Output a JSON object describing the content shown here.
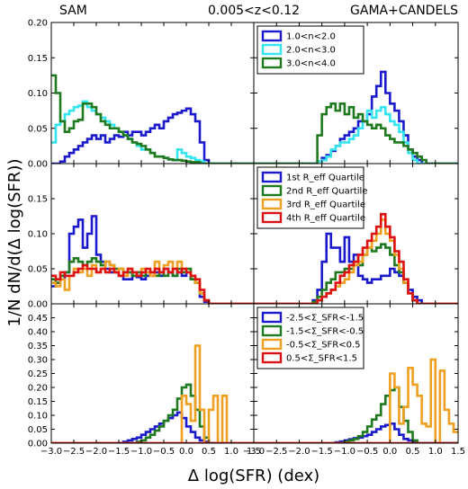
{
  "header": {
    "left": "SAM",
    "center": "0.005<z<0.12",
    "right": "GAMA+CANDELS"
  },
  "chart_data": {
    "type": "histogram-grid",
    "xlabel": "Δ log(SFR) (dex)",
    "ylabel": "1/N dN/d(Δ log(SFR))",
    "x_ticks": [
      "−3.0",
      "−2.5",
      "−2.0",
      "−1.5",
      "−1.0",
      "−0.5",
      "0.0",
      "0.5",
      "1.0",
      "1.5"
    ],
    "x_tick_values": [
      -3.0,
      -2.5,
      -2.0,
      -1.5,
      -1.0,
      -0.5,
      0.0,
      0.5,
      1.0,
      1.5
    ],
    "xlim": [
      -3.0,
      1.5
    ],
    "rows": [
      {
        "ylim": [
          0,
          0.2
        ],
        "y_ticks": [
          "0.00",
          "0.05",
          "0.10",
          "0.15",
          "0.20"
        ],
        "y_tick_values": [
          0,
          0.05,
          0.1,
          0.15,
          0.2
        ],
        "legend": [
          "1.0<n<2.0",
          "2.0<n<3.0",
          "3.0<n<4.0"
        ],
        "colors": [
          "#1a1acc",
          "#33e5f0",
          "#1f7a1f"
        ],
        "x0": -3.0,
        "bin": 0.1,
        "sam": [
          [
            0,
            0,
            0.003,
            0.01,
            0.015,
            0.02,
            0.025,
            0.03,
            0.035,
            0.04,
            0.035,
            0.04,
            0.03,
            0.035,
            0.04,
            0.038,
            0.045,
            0.04,
            0.045,
            0.045,
            0.04,
            0.045,
            0.05,
            0.055,
            0.05,
            0.06,
            0.065,
            0.07,
            0.072,
            0.075,
            0.078,
            0.07,
            0.06,
            0.03,
            0.005,
            0,
            0,
            0,
            0,
            0,
            0,
            0,
            0,
            0,
            0
          ],
          [
            0.03,
            0.055,
            0.06,
            0.07,
            0.075,
            0.08,
            0.082,
            0.088,
            0.08,
            0.075,
            0.07,
            0.065,
            0.06,
            0.055,
            0.05,
            0.045,
            0.04,
            0.035,
            0.03,
            0.025,
            0.02,
            0.02,
            0.015,
            0.01,
            0.01,
            0.008,
            0.006,
            0.005,
            0.02,
            0.015,
            0.01,
            0.008,
            0.005,
            0.003,
            0,
            0,
            0,
            0,
            0,
            0,
            0,
            0,
            0,
            0,
            0
          ],
          [
            0.125,
            0.1,
            0.06,
            0.045,
            0.05,
            0.06,
            0.062,
            0.085,
            0.085,
            0.08,
            0.07,
            0.06,
            0.055,
            0.05,
            0.05,
            0.045,
            0.04,
            0.035,
            0.03,
            0.028,
            0.025,
            0.02,
            0.015,
            0.01,
            0.01,
            0.008,
            0.006,
            0.005,
            0.005,
            0.004,
            0.003,
            0.002,
            0.002,
            0,
            0,
            0,
            0,
            0,
            0,
            0,
            0,
            0,
            0,
            0,
            0
          ]
        ],
        "obs": [
          [
            0,
            0,
            0,
            0,
            0,
            0,
            0,
            0,
            0,
            0,
            0,
            0,
            0,
            0,
            0.003,
            0.008,
            0.012,
            0.018,
            0.025,
            0.035,
            0.04,
            0.045,
            0.05,
            0.06,
            0.06,
            0.07,
            0.095,
            0.11,
            0.13,
            0.1,
            0.085,
            0.075,
            0.06,
            0.04,
            0.02,
            0.01,
            0.005,
            0,
            0,
            0,
            0,
            0,
            0,
            0,
            0
          ],
          [
            0,
            0,
            0,
            0,
            0,
            0,
            0,
            0,
            0,
            0,
            0,
            0,
            0,
            0,
            0.003,
            0.005,
            0.01,
            0.02,
            0.025,
            0.03,
            0.03,
            0.035,
            0.04,
            0.05,
            0.06,
            0.075,
            0.065,
            0.075,
            0.08,
            0.07,
            0.06,
            0.055,
            0.045,
            0.03,
            0.015,
            0.005,
            0,
            0,
            0,
            0,
            0,
            0,
            0,
            0,
            0
          ],
          [
            0,
            0,
            0,
            0,
            0,
            0,
            0,
            0,
            0,
            0,
            0,
            0,
            0,
            0,
            0.04,
            0.07,
            0.08,
            0.085,
            0.075,
            0.085,
            0.07,
            0.08,
            0.065,
            0.07,
            0.06,
            0.055,
            0.05,
            0.055,
            0.05,
            0.04,
            0.035,
            0.03,
            0.03,
            0.025,
            0.02,
            0.015,
            0.01,
            0.005,
            0,
            0,
            0,
            0,
            0,
            0,
            0
          ]
        ]
      },
      {
        "ylim": [
          0,
          0.2
        ],
        "y_ticks": [
          "0.00",
          "0.05",
          "0.10",
          "0.15",
          "0.20"
        ],
        "y_tick_values": [
          0,
          0.05,
          0.1,
          0.15,
          0.2
        ],
        "legend": [
          "1st R_eff Quartile",
          "2nd R_eff Quartile",
          "3rd R_eff Quartile",
          "4th R_eff Quartile"
        ],
        "colors": [
          "#1a1acc",
          "#1f7a1f",
          "#f0a020",
          "#dd1111"
        ],
        "x0": -3.0,
        "bin": 0.1,
        "sam": [
          [
            0.025,
            0.03,
            0.035,
            0.045,
            0.1,
            0.11,
            0.12,
            0.08,
            0.1,
            0.125,
            0.07,
            0.06,
            0.05,
            0.045,
            0.045,
            0.04,
            0.035,
            0.035,
            0.04,
            0.038,
            0.035,
            0.04,
            0.04,
            0.045,
            0.04,
            0.05,
            0.045,
            0.04,
            0.045,
            0.04,
            0.045,
            0.035,
            0.03,
            0.01,
            0.003,
            0,
            0,
            0,
            0,
            0,
            0,
            0,
            0,
            0,
            0
          ],
          [
            0.035,
            0.03,
            0.04,
            0.045,
            0.06,
            0.065,
            0.06,
            0.055,
            0.06,
            0.065,
            0.06,
            0.055,
            0.06,
            0.055,
            0.05,
            0.05,
            0.045,
            0.045,
            0.04,
            0.045,
            0.04,
            0.045,
            0.045,
            0.04,
            0.045,
            0.04,
            0.045,
            0.04,
            0.05,
            0.045,
            0.05,
            0.035,
            0.03,
            0.015,
            0.005,
            0,
            0,
            0,
            0,
            0,
            0,
            0,
            0,
            0,
            0
          ],
          [
            0.03,
            0.025,
            0.035,
            0.02,
            0.04,
            0.05,
            0.045,
            0.05,
            0.04,
            0.055,
            0.045,
            0.05,
            0.06,
            0.055,
            0.045,
            0.05,
            0.04,
            0.05,
            0.045,
            0.04,
            0.05,
            0.045,
            0.04,
            0.06,
            0.045,
            0.055,
            0.06,
            0.05,
            0.06,
            0.05,
            0.045,
            0.04,
            0.03,
            0.015,
            0.005,
            0,
            0,
            0,
            0,
            0,
            0,
            0,
            0,
            0,
            0
          ],
          [
            0.04,
            0.035,
            0.045,
            0.04,
            0.04,
            0.045,
            0.05,
            0.055,
            0.05,
            0.05,
            0.045,
            0.05,
            0.045,
            0.05,
            0.045,
            0.04,
            0.045,
            0.05,
            0.045,
            0.04,
            0.045,
            0.05,
            0.045,
            0.05,
            0.045,
            0.05,
            0.045,
            0.05,
            0.045,
            0.05,
            0.045,
            0.04,
            0.035,
            0.02,
            0.005,
            0,
            0,
            0,
            0,
            0,
            0,
            0,
            0,
            0,
            0
          ]
        ],
        "obs": [
          [
            0,
            0,
            0,
            0,
            0,
            0,
            0,
            0,
            0,
            0,
            0,
            0,
            0,
            0.005,
            0.02,
            0.06,
            0.1,
            0.08,
            0.08,
            0.06,
            0.095,
            0.06,
            0.07,
            0.04,
            0.035,
            0.03,
            0.035,
            0.035,
            0.04,
            0.04,
            0.05,
            0.045,
            0.04,
            0.03,
            0.02,
            0.01,
            0.005,
            0,
            0,
            0,
            0,
            0,
            0,
            0,
            0
          ],
          [
            0,
            0,
            0,
            0,
            0,
            0,
            0,
            0,
            0,
            0,
            0,
            0,
            0,
            0.003,
            0.01,
            0.02,
            0.03,
            0.035,
            0.045,
            0.045,
            0.05,
            0.05,
            0.06,
            0.055,
            0.07,
            0.08,
            0.075,
            0.08,
            0.085,
            0.08,
            0.07,
            0.055,
            0.045,
            0.03,
            0.015,
            0.005,
            0,
            0,
            0,
            0,
            0,
            0,
            0,
            0,
            0
          ],
          [
            0,
            0,
            0,
            0,
            0,
            0,
            0,
            0,
            0,
            0,
            0,
            0,
            0,
            0,
            0.005,
            0.01,
            0.015,
            0.02,
            0.025,
            0.03,
            0.035,
            0.045,
            0.055,
            0.06,
            0.07,
            0.08,
            0.09,
            0.1,
            0.12,
            0.1,
            0.09,
            0.07,
            0.05,
            0.03,
            0.015,
            0.005,
            0,
            0,
            0,
            0,
            0,
            0,
            0,
            0,
            0
          ],
          [
            0,
            0,
            0,
            0,
            0,
            0,
            0,
            0,
            0,
            0,
            0,
            0,
            0,
            0,
            0.005,
            0.01,
            0.015,
            0.02,
            0.03,
            0.04,
            0.045,
            0.055,
            0.06,
            0.07,
            0.08,
            0.09,
            0.1,
            0.11,
            0.128,
            0.11,
            0.095,
            0.075,
            0.06,
            0.035,
            0.015,
            0.005,
            0,
            0,
            0,
            0,
            0,
            0,
            0,
            0,
            0
          ]
        ]
      },
      {
        "ylim": [
          0,
          0.5
        ],
        "y_ticks": [
          "0.00",
          "0.05",
          "0.10",
          "0.15",
          "0.20",
          "0.25",
          "0.30",
          "0.35",
          "0.40",
          "0.45"
        ],
        "y_tick_values": [
          0,
          0.05,
          0.1,
          0.15,
          0.2,
          0.25,
          0.3,
          0.35,
          0.4,
          0.45
        ],
        "legend": [
          "-2.5<Σ_SFR<-1.5",
          "-1.5<Σ_SFR<-0.5",
          "-0.5<Σ_SFR<0.5",
          "0.5<Σ_SFR<1.5"
        ],
        "colors": [
          "#1a1acc",
          "#1f7a1f",
          "#f0a020",
          "#dd1111"
        ],
        "x0": -3.0,
        "bin": 0.1,
        "sam": [
          [
            0,
            0,
            0,
            0,
            0,
            0,
            0,
            0,
            0,
            0,
            0,
            0,
            0,
            0,
            0,
            0,
            0.005,
            0.01,
            0.015,
            0.02,
            0.03,
            0.04,
            0.05,
            0.06,
            0.07,
            0.08,
            0.09,
            0.1,
            0.11,
            0.09,
            0.06,
            0.04,
            0.02,
            0.01,
            0.005,
            0,
            0,
            0,
            0,
            0,
            0,
            0,
            0,
            0,
            0
          ],
          [
            0,
            0,
            0,
            0,
            0,
            0,
            0,
            0,
            0,
            0,
            0,
            0,
            0,
            0,
            0,
            0,
            0,
            0,
            0,
            0.005,
            0.01,
            0.02,
            0.03,
            0.045,
            0.06,
            0.08,
            0.1,
            0.12,
            0.16,
            0.2,
            0.21,
            0.17,
            0.12,
            0.06,
            0.02,
            0,
            0,
            0,
            0,
            0,
            0,
            0,
            0,
            0,
            0
          ],
          [
            0,
            0,
            0,
            0,
            0,
            0,
            0,
            0,
            0,
            0,
            0,
            0,
            0,
            0,
            0,
            0,
            0,
            0,
            0,
            0,
            0,
            0,
            0,
            0,
            0,
            0,
            0,
            0,
            0,
            0.17,
            0.14,
            0.08,
            0.35,
            0.12,
            0,
            0.12,
            0.17,
            0,
            0.17,
            0,
            0,
            0,
            0,
            0,
            0
          ],
          [
            0,
            0,
            0,
            0,
            0,
            0,
            0,
            0,
            0,
            0,
            0,
            0,
            0,
            0,
            0,
            0,
            0,
            0,
            0,
            0,
            0,
            0,
            0,
            0,
            0,
            0,
            0,
            0,
            0,
            0,
            0,
            0,
            0,
            0,
            0,
            0,
            0,
            0,
            0,
            0,
            0,
            0,
            0,
            0,
            0
          ]
        ],
        "obs": [
          [
            0,
            0,
            0,
            0,
            0,
            0,
            0,
            0,
            0,
            0,
            0,
            0,
            0,
            0,
            0,
            0,
            0,
            0,
            0.003,
            0.006,
            0.01,
            0.014,
            0.018,
            0.02,
            0.025,
            0.03,
            0.04,
            0.05,
            0.06,
            0.065,
            0.07,
            0.05,
            0.03,
            0.015,
            0.01,
            0.005,
            0,
            0,
            0,
            0,
            0,
            0,
            0,
            0,
            0
          ],
          [
            0,
            0,
            0,
            0,
            0,
            0,
            0,
            0,
            0,
            0,
            0,
            0,
            0,
            0,
            0,
            0,
            0,
            0,
            0,
            0,
            0.005,
            0.01,
            0.015,
            0.025,
            0.04,
            0.06,
            0.085,
            0.1,
            0.14,
            0.17,
            0.19,
            0.2,
            0.13,
            0.08,
            0.04,
            0.01,
            0,
            0,
            0,
            0,
            0,
            0,
            0,
            0,
            0
          ],
          [
            0,
            0,
            0,
            0,
            0,
            0,
            0,
            0,
            0,
            0,
            0,
            0,
            0,
            0,
            0,
            0,
            0,
            0,
            0,
            0,
            0,
            0,
            0,
            0,
            0,
            0,
            0,
            0,
            0,
            0,
            0.25,
            0.2,
            0.07,
            0.13,
            0.27,
            0.21,
            0.17,
            0.07,
            0.06,
            0.3,
            0,
            0.26,
            0.12,
            0.07,
            0.04
          ],
          [
            0,
            0,
            0,
            0,
            0,
            0,
            0,
            0,
            0,
            0,
            0,
            0,
            0,
            0,
            0,
            0,
            0,
            0,
            0,
            0,
            0,
            0,
            0,
            0,
            0,
            0,
            0,
            0,
            0,
            0,
            0,
            0,
            0,
            0,
            0,
            0,
            0,
            0,
            0,
            0,
            0,
            0,
            0,
            0,
            0
          ]
        ]
      }
    ]
  }
}
